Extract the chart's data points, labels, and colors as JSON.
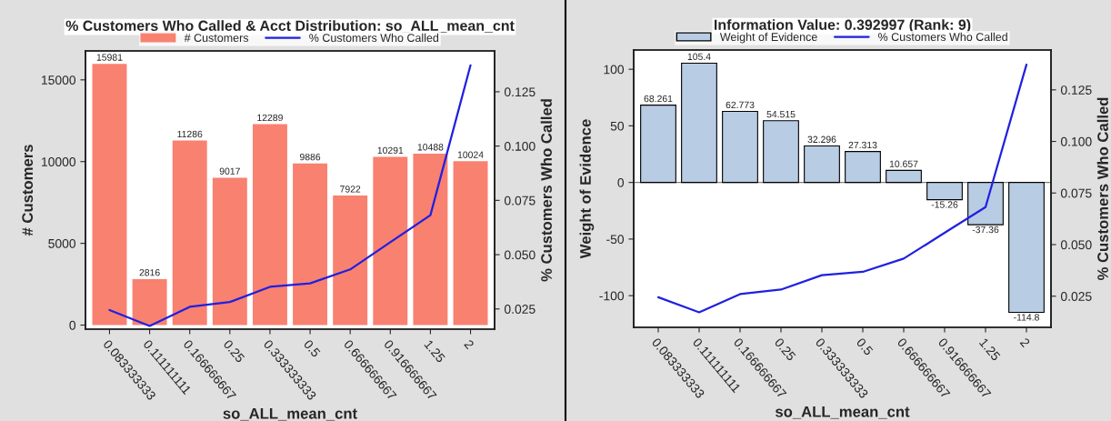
{
  "chart_data": [
    {
      "type": "bar",
      "title": "% Customers Who Called & Acct Distribution: so_ALL_mean_cnt",
      "xlabel": "so_ALL_mean_cnt",
      "ylabel": "# Customers",
      "y2label": "% Customers Who Called",
      "categories": [
        "0.083333333",
        "0.111111111",
        "0.166666667",
        "0.25",
        "0.333333333",
        "0.5",
        "0.666666667",
        "0.916666667",
        "1.25",
        "2"
      ],
      "series": [
        {
          "name": "# Customers",
          "color": "#f88170",
          "values": [
            15981,
            2816,
            11286,
            9017,
            12289,
            9886,
            7922,
            10291,
            10488,
            10024
          ],
          "value_labels": [
            "15981",
            "2816",
            "11286",
            "9017",
            "12289",
            "9886",
            "7922",
            "10291",
            "10488",
            "10024"
          ]
        },
        {
          "name": "% Customers Who Called",
          "type": "line",
          "axis": "y2",
          "color": "#2020e0",
          "values": [
            0.0245,
            0.0172,
            0.026,
            0.0282,
            0.0352,
            0.0368,
            0.0432,
            0.0557,
            0.0682,
            0.1372
          ]
        }
      ],
      "ylim": [
        -250,
        16770
      ],
      "yticks": [
        0,
        5000,
        10000,
        15000
      ],
      "y2lim": [
        0.0157,
        0.1438
      ],
      "y2ticks": [
        {
          "value": 0.025,
          "label": "0.025"
        },
        {
          "value": 0.05,
          "label": "0.050"
        },
        {
          "value": 0.075,
          "label": "0.075"
        },
        {
          "value": 0.1,
          "label": "0.100"
        },
        {
          "value": 0.125,
          "label": "0.125"
        }
      ],
      "legend": "top",
      "grid": false
    },
    {
      "type": "bar",
      "title": "Information Value: 0.392997 (Rank: 9)",
      "xlabel": "so_ALL_mean_cnt",
      "ylabel": "Weight of Evidence",
      "y2label": "% Customers Who Called",
      "categories": [
        "0.083333333",
        "0.111111111",
        "0.166666667",
        "0.25",
        "0.333333333",
        "0.5",
        "0.666666667",
        "0.916666667",
        "1.25",
        "2"
      ],
      "series": [
        {
          "name": "Weight of Evidence",
          "color": "#b8cce4",
          "values": [
            68.261,
            105.4,
            62.773,
            54.515,
            32.296,
            27.313,
            10.657,
            -15.26,
            -37.36,
            -114.8
          ],
          "value_labels": [
            "68.261",
            "105.4",
            "62.773",
            "54.515",
            "32.296",
            "27.313",
            "10.657",
            "-15.26",
            "-37.36",
            "-114.8"
          ]
        },
        {
          "name": "% Customers Who Called",
          "type": "line",
          "axis": "y2",
          "color": "#2020e0",
          "values": [
            0.0245,
            0.0172,
            0.026,
            0.0282,
            0.0352,
            0.0368,
            0.0432,
            0.0557,
            0.0682,
            0.1372
          ]
        }
      ],
      "ylim": [
        -128,
        117
      ],
      "yticks": [
        -100,
        -50,
        0,
        50,
        100
      ],
      "y2lim": [
        0.0099,
        0.1443
      ],
      "y2ticks": [
        {
          "value": 0.025,
          "label": "0.025"
        },
        {
          "value": 0.05,
          "label": "0.050"
        },
        {
          "value": 0.075,
          "label": "0.075"
        },
        {
          "value": 0.1,
          "label": "0.100"
        },
        {
          "value": 0.125,
          "label": "0.125"
        }
      ],
      "ref_lines": [
        {
          "axis": "y",
          "value": 0,
          "color": "#808080"
        }
      ],
      "legend": "top",
      "grid": false
    }
  ]
}
